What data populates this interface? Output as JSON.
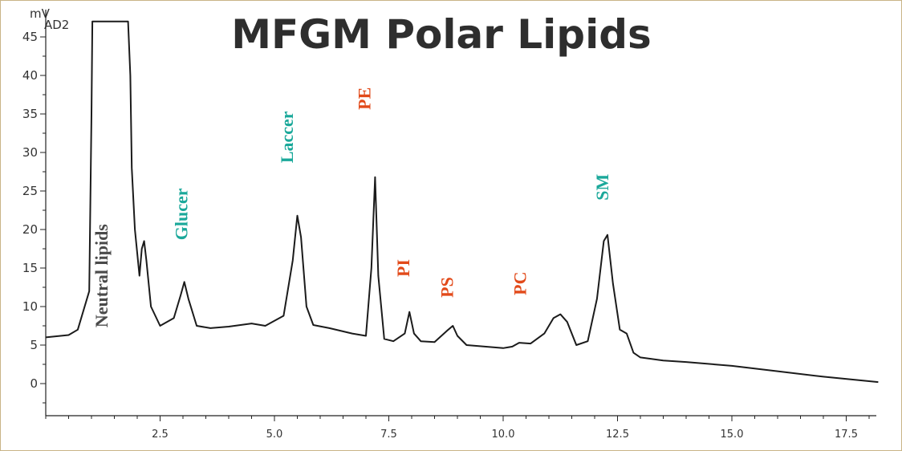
{
  "chart_data": {
    "type": "line",
    "title": "MFGM Polar Lipids",
    "y_unit": "mV",
    "detector": "AD2",
    "xlabel": "",
    "ylabel": "mV",
    "xlim": [
      0,
      18.3
    ],
    "ylim": [
      -4,
      47
    ],
    "grid": false,
    "x_ticks": [
      2.5,
      5.0,
      7.5,
      10.0,
      12.5,
      15.0,
      17.5
    ],
    "x_tick_labels": [
      "2.5",
      "5.0",
      "7.5",
      "10.0",
      "12.5",
      "15.0",
      "17.5"
    ],
    "y_ticks": [
      0,
      5,
      10,
      15,
      20,
      25,
      30,
      35,
      40,
      45
    ],
    "y_tick_labels": [
      "0",
      "5",
      "10",
      "15",
      "20",
      "25",
      "30",
      "35",
      "40",
      "45"
    ],
    "series": [
      {
        "x": [
          0.0,
          0.5,
          0.7,
          0.95,
          1.0,
          1.02,
          1.05,
          1.1,
          1.8,
          1.85,
          1.88,
          1.95,
          2.05,
          2.1,
          2.15,
          2.2,
          2.3,
          2.5,
          2.8,
          2.95,
          3.03,
          3.12,
          3.3,
          3.6,
          4.0,
          4.5,
          4.8,
          5.2,
          5.4,
          5.5,
          5.58,
          5.7,
          5.85,
          6.2,
          6.7,
          7.0,
          7.12,
          7.2,
          7.27,
          7.4,
          7.6,
          7.85,
          7.95,
          8.05,
          8.2,
          8.5,
          8.8,
          8.9,
          9.0,
          9.2,
          9.6,
          10.0,
          10.2,
          10.35,
          10.6,
          10.9,
          11.1,
          11.25,
          11.4,
          11.6,
          11.85,
          12.05,
          12.2,
          12.28,
          12.4,
          12.55,
          12.7,
          12.85,
          13.0,
          13.5,
          14.0,
          15.0,
          16.0,
          17.0,
          18.2
        ],
        "y": [
          6.0,
          6.3,
          7.0,
          12.0,
          35.0,
          47.0,
          47.0,
          47.0,
          47.0,
          40.0,
          28.0,
          20.0,
          14.0,
          17.5,
          18.5,
          16.0,
          10.0,
          7.5,
          8.5,
          11.5,
          13.2,
          11.0,
          7.5,
          7.2,
          7.4,
          7.8,
          7.5,
          8.8,
          16.0,
          21.8,
          19.0,
          10.0,
          7.6,
          7.2,
          6.5,
          6.2,
          15.0,
          26.8,
          14.0,
          5.8,
          5.5,
          6.5,
          9.3,
          6.5,
          5.5,
          5.4,
          7.0,
          7.5,
          6.2,
          5.0,
          4.8,
          4.6,
          4.8,
          5.3,
          5.2,
          6.5,
          8.5,
          9.0,
          8.0,
          5.0,
          5.5,
          11.0,
          18.5,
          19.3,
          13.0,
          7.0,
          6.5,
          4.0,
          3.4,
          3.0,
          2.8,
          2.3,
          1.6,
          0.9,
          0.2
        ]
      }
    ],
    "annotations": [
      {
        "text": "Neutral lipids",
        "x": 1.35,
        "y": 14,
        "color": "#4a4a4a"
      },
      {
        "text": "Glucer",
        "x": 3.1,
        "y": 22,
        "color": "#1aa89a"
      },
      {
        "text": "Laccer",
        "x": 5.4,
        "y": 32,
        "color": "#1aa89a"
      },
      {
        "text": "PE",
        "x": 7.1,
        "y": 37,
        "color": "#e24a1a"
      },
      {
        "text": "PI",
        "x": 7.95,
        "y": 15,
        "color": "#e24a1a"
      },
      {
        "text": "PS",
        "x": 8.9,
        "y": 12.5,
        "color": "#e24a1a"
      },
      {
        "text": "PC",
        "x": 10.5,
        "y": 13,
        "color": "#e24a1a"
      },
      {
        "text": "SM",
        "x": 12.3,
        "y": 25.5,
        "color": "#1aa89a"
      }
    ]
  }
}
